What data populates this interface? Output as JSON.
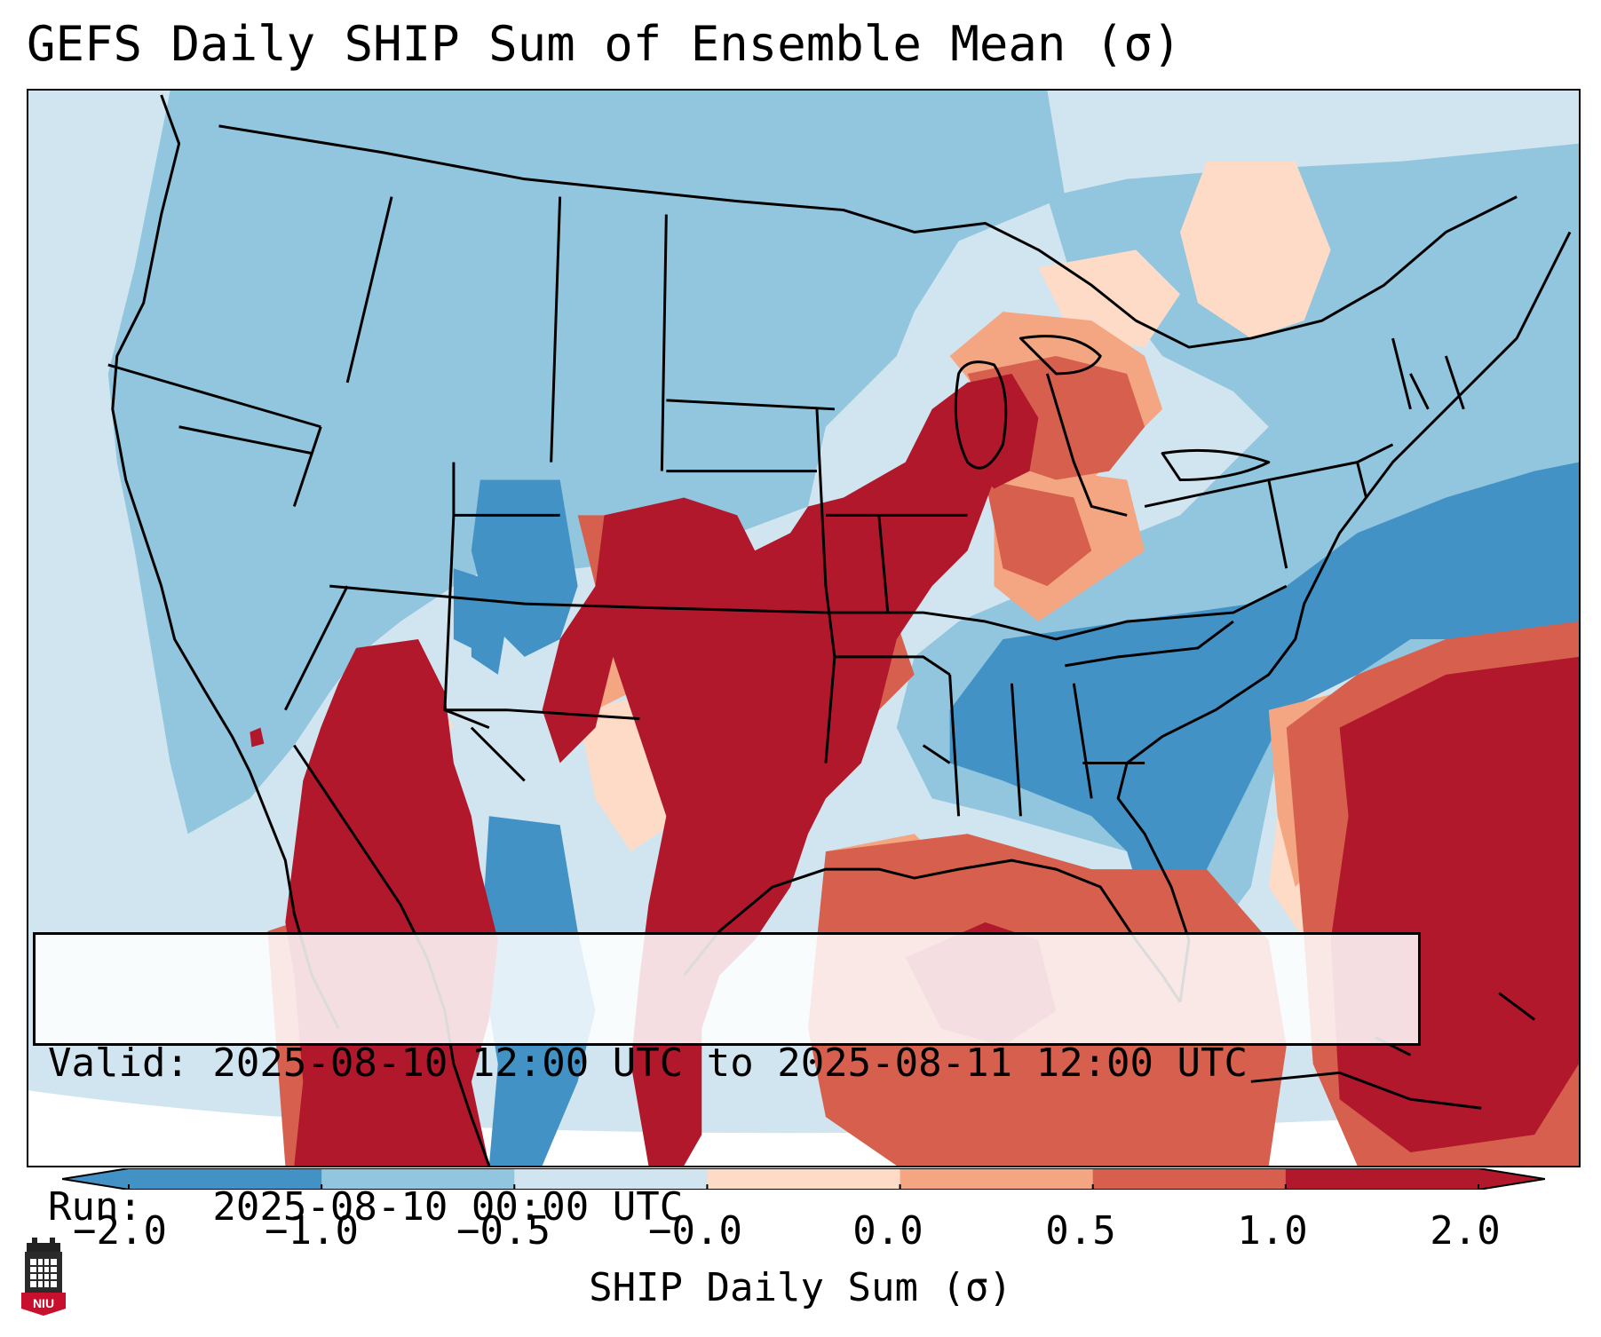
{
  "title": "GEFS Daily SHIP Sum of Ensemble Mean (σ)",
  "info": {
    "valid_line": "Valid: 2025-08-10 12:00 UTC to 2025-08-11 12:00 UTC",
    "run_line": "Run:   2025-08-10 00:00 UTC"
  },
  "colorbar": {
    "label": "SHIP Daily Sum (σ)",
    "ticks": [
      "−2.0",
      "−1.0",
      "−0.5",
      "−0.0",
      "0.0",
      "0.5",
      "1.0",
      "2.0"
    ],
    "colors": [
      "#4292c6",
      "#92c5de",
      "#d1e5f0",
      "#fddbc7",
      "#f4a582",
      "#d6604d",
      "#b2182b"
    ],
    "extend": "both"
  },
  "legend_colors": {
    "strong_negative": "#4292c6",
    "negative": "#92c5de",
    "weak_negative": "#d1e5f0",
    "weak_positive": "#fddbc7",
    "positive": "#f4a582",
    "moderate_positive": "#d6604d",
    "strong_positive": "#b2182b"
  },
  "logo": {
    "icon": "niu-logo-icon",
    "text": "NIU"
  }
}
